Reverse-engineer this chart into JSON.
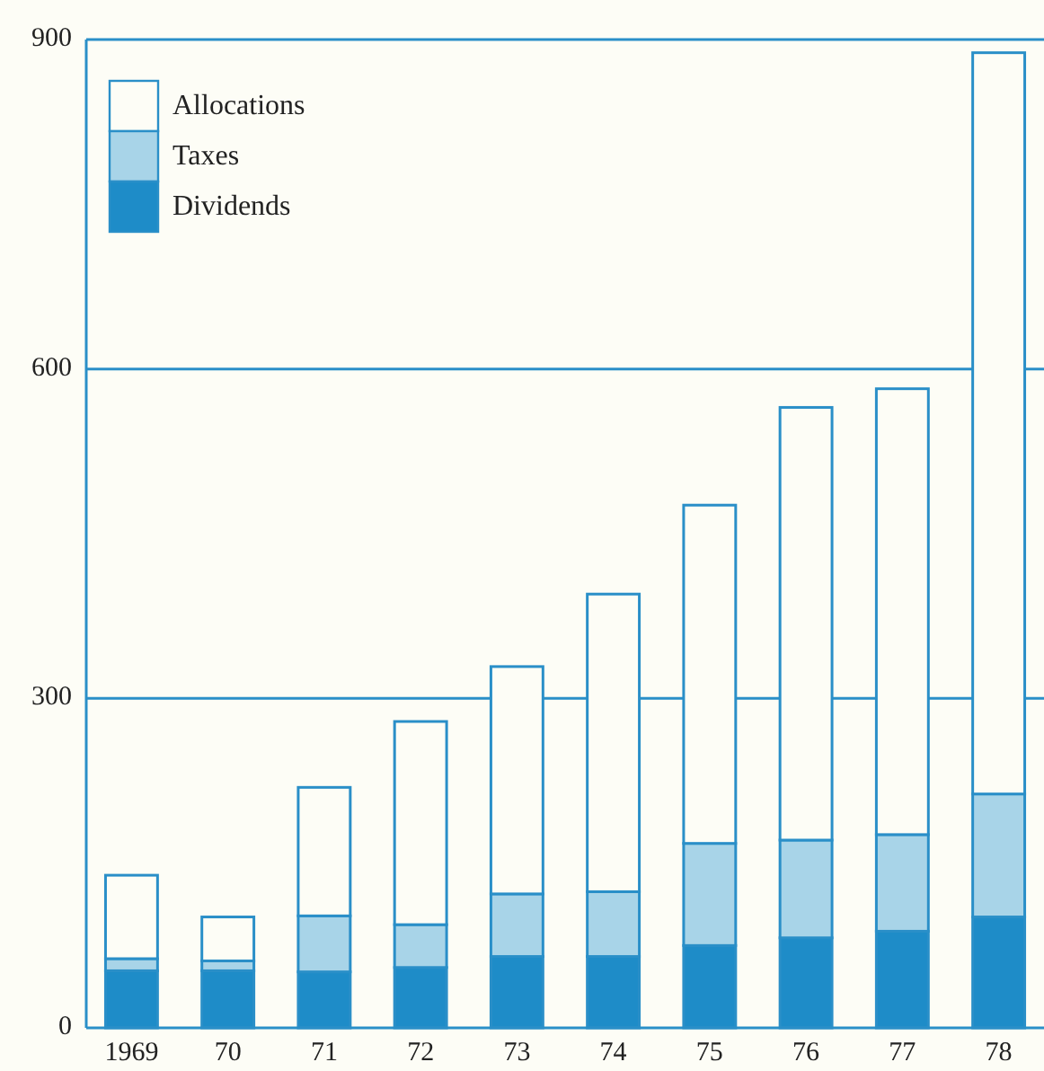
{
  "chart_data": {
    "type": "bar",
    "stacked": true,
    "categories": [
      "1969",
      "70",
      "71",
      "72",
      "73",
      "74",
      "75",
      "76",
      "77",
      "78"
    ],
    "series": [
      {
        "name": "Dividends",
        "color": "#1e8cc8",
        "values": [
          52,
          52,
          51,
          55,
          65,
          65,
          75,
          82,
          88,
          101
        ]
      },
      {
        "name": "Taxes",
        "color": "#a8d4e8",
        "values": [
          11,
          9,
          51,
          39,
          57,
          59,
          93,
          89,
          88,
          112
        ]
      },
      {
        "name": "Allocations",
        "color": "#fdfdf6",
        "values": [
          76,
          40,
          117,
          185,
          207,
          271,
          308,
          394,
          406,
          675
        ]
      }
    ],
    "ylim": [
      0,
      900
    ],
    "yticks": [
      0,
      300,
      600,
      900
    ],
    "grid": "y",
    "legend": "top left"
  }
}
